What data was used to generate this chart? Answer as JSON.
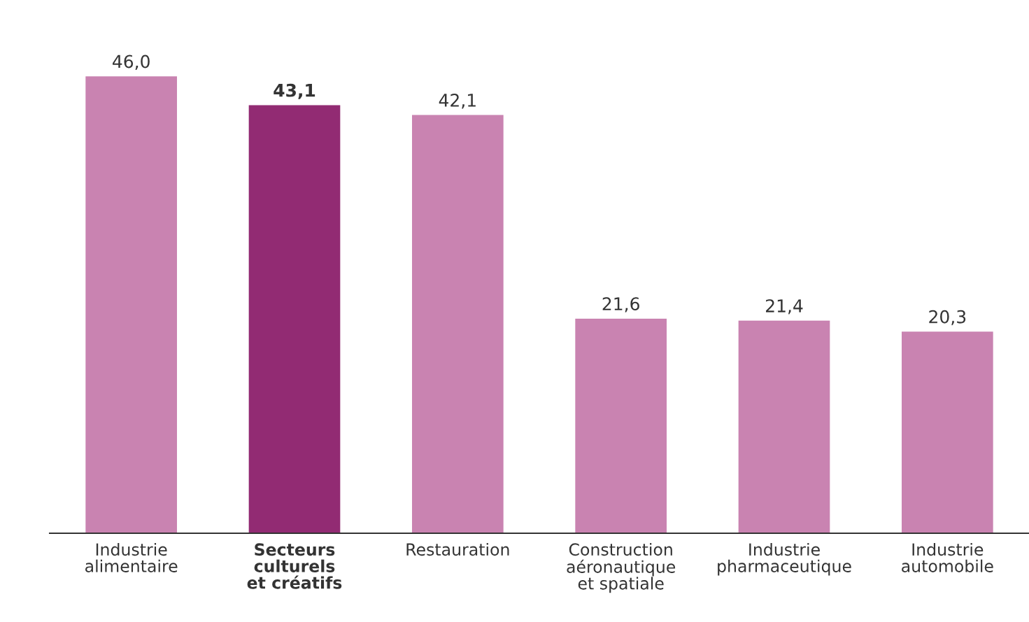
{
  "chart_data": {
    "type": "bar",
    "categories": [
      "Industrie\nalimentaire",
      "Secteurs\nculturels\net créatifs",
      "Restauration",
      "Construction\naéronautique\net spatiale",
      "Industrie\npharmaceutique",
      "Industrie\nautomobile"
    ],
    "values": [
      46.0,
      43.1,
      42.1,
      21.6,
      21.4,
      20.3
    ],
    "value_labels": [
      "46,0",
      "43,1",
      "42,1",
      "21,6",
      "21,4",
      "20,3"
    ],
    "colors": [
      "#c983b1",
      "#922b73",
      "#c983b1",
      "#c983b1",
      "#c983b1",
      "#c983b1"
    ],
    "grid": false,
    "legend": false
  }
}
